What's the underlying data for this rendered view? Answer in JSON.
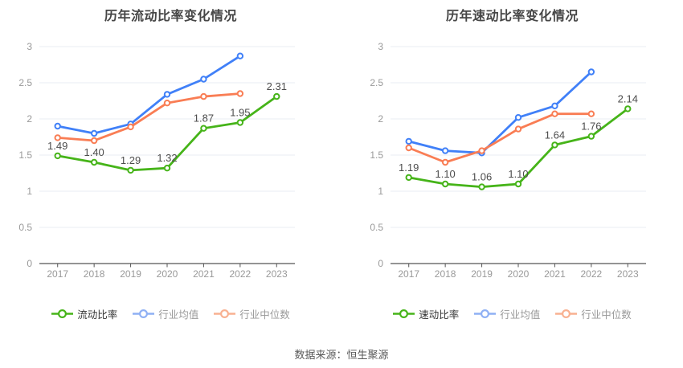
{
  "source_note": "数据来源：恒生聚源",
  "palette": {
    "green": "#46B419",
    "blue": "#4080F8",
    "orange": "#F97D54",
    "legend_blue": "#8FB0F4",
    "legend_orange": "#F8B191",
    "grid": "#E8ECF3",
    "axis": "#555555",
    "tick_label": "#999999",
    "value_label": "#4D4D4D",
    "title": "#464646",
    "legend_active_text": "#333333",
    "legend_muted_text": "#999999"
  },
  "chart_data": [
    {
      "type": "line",
      "title": "历年流动比率变化情况",
      "categories": [
        "2017",
        "2018",
        "2019",
        "2020",
        "2021",
        "2022",
        "2023"
      ],
      "series": [
        {
          "name": "流动比率",
          "color_key": "green",
          "point_labels": true,
          "values": [
            1.49,
            1.4,
            1.29,
            1.32,
            1.87,
            1.95,
            2.31
          ]
        },
        {
          "name": "行业均值",
          "color_key": "blue",
          "point_labels": false,
          "values": [
            1.9,
            1.8,
            1.93,
            2.34,
            2.55,
            2.87,
            null
          ]
        },
        {
          "name": "行业中位数",
          "color_key": "orange",
          "point_labels": false,
          "values": [
            1.74,
            1.7,
            1.89,
            2.22,
            2.31,
            2.35,
            null
          ]
        }
      ],
      "xlabel": "",
      "ylabel": "",
      "ylim": [
        0,
        3
      ],
      "yticks": [
        0,
        0.5,
        1,
        1.5,
        2,
        2.5,
        3
      ],
      "grid": true,
      "legend_position": "bottom"
    },
    {
      "type": "line",
      "title": "历年速动比率变化情况",
      "categories": [
        "2017",
        "2018",
        "2019",
        "2020",
        "2021",
        "2022",
        "2023"
      ],
      "series": [
        {
          "name": "速动比率",
          "color_key": "green",
          "point_labels": true,
          "values": [
            1.19,
            1.1,
            1.06,
            1.1,
            1.64,
            1.76,
            2.14
          ]
        },
        {
          "name": "行业均值",
          "color_key": "blue",
          "point_labels": false,
          "values": [
            1.69,
            1.56,
            1.53,
            2.02,
            2.18,
            2.65,
            null
          ]
        },
        {
          "name": "行业中位数",
          "color_key": "orange",
          "point_labels": false,
          "values": [
            1.6,
            1.4,
            1.56,
            1.86,
            2.07,
            2.07,
            null
          ]
        }
      ],
      "xlabel": "",
      "ylabel": "",
      "ylim": [
        0,
        3
      ],
      "yticks": [
        0,
        0.5,
        1,
        1.5,
        2,
        2.5,
        3
      ],
      "grid": true,
      "legend_position": "bottom"
    }
  ]
}
